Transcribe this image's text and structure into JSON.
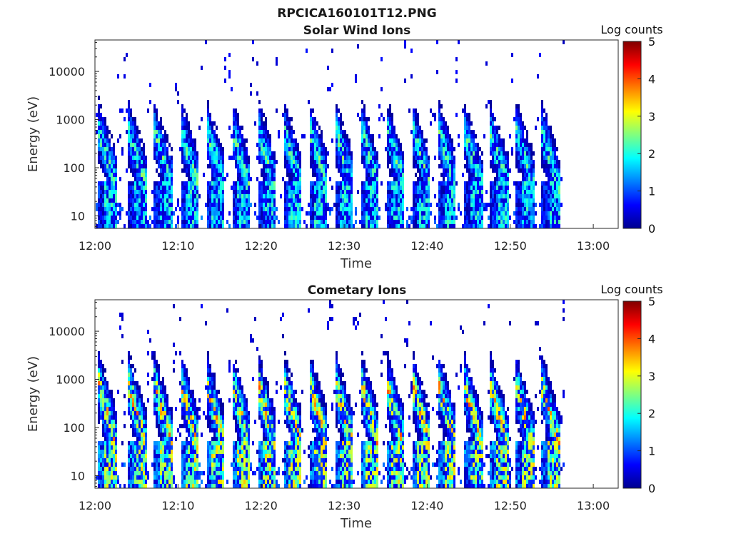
{
  "figure_title": "RPCICA160101T12.PNG",
  "chart_data": [
    {
      "type": "heatmap",
      "title": "Solar Wind Ions",
      "xlabel": "Time",
      "ylabel": "Energy (eV)",
      "x_tick_labels": [
        "12:00",
        "12:10",
        "12:20",
        "12:30",
        "12:40",
        "12:50",
        "13:00"
      ],
      "x_range_minutes": [
        0,
        63
      ],
      "data_end_minute": 56.5,
      "y_scale": "log",
      "y_range_eV": [
        5.5,
        45000
      ],
      "y_ticks": [
        10,
        100,
        1000,
        10000
      ],
      "y_tick_labels": [
        "10",
        "100",
        "1000",
        "10000"
      ],
      "colorbar": {
        "label": "Log counts",
        "min": 0,
        "max": 5,
        "ticks": [
          "0",
          "1",
          "2",
          "3",
          "4",
          "5"
        ],
        "colormap": "jet"
      },
      "sweep_starts_minutes": [
        0.3,
        3.9,
        7.0,
        10.2,
        13.3,
        16.4,
        19.5,
        22.6,
        25.7,
        28.8,
        31.9,
        35.0,
        38.1,
        41.2,
        44.3,
        47.4,
        50.5,
        53.6
      ],
      "peak_energy_eV": 40,
      "peak_log_counts": 2.3,
      "background_log_counts": 0.3,
      "ridge_top_energy_eV": 600
    },
    {
      "type": "heatmap",
      "title": "Cometary Ions",
      "xlabel": "Time",
      "ylabel": "Energy (eV)",
      "x_tick_labels": [
        "12:00",
        "12:10",
        "12:20",
        "12:30",
        "12:40",
        "12:50",
        "13:00"
      ],
      "x_range_minutes": [
        0,
        63
      ],
      "data_end_minute": 56.5,
      "y_scale": "log",
      "y_range_eV": [
        5.5,
        45000
      ],
      "y_ticks": [
        10,
        100,
        1000,
        10000
      ],
      "y_tick_labels": [
        "10",
        "100",
        "1000",
        "10000"
      ],
      "colorbar": {
        "label": "Log counts",
        "min": 0,
        "max": 5,
        "ticks": [
          "0",
          "1",
          "2",
          "3",
          "4",
          "5"
        ],
        "colormap": "jet"
      },
      "sweep_starts_minutes": [
        0.3,
        3.9,
        7.0,
        10.2,
        13.3,
        16.4,
        19.5,
        22.6,
        25.7,
        28.8,
        31.9,
        35.0,
        38.1,
        41.2,
        44.3,
        47.4,
        50.5,
        53.6
      ],
      "peak_energy_eV": 40,
      "peak_log_counts": 3.4,
      "background_log_counts": 0.2,
      "ridge_top_energy_eV": 800
    }
  ]
}
